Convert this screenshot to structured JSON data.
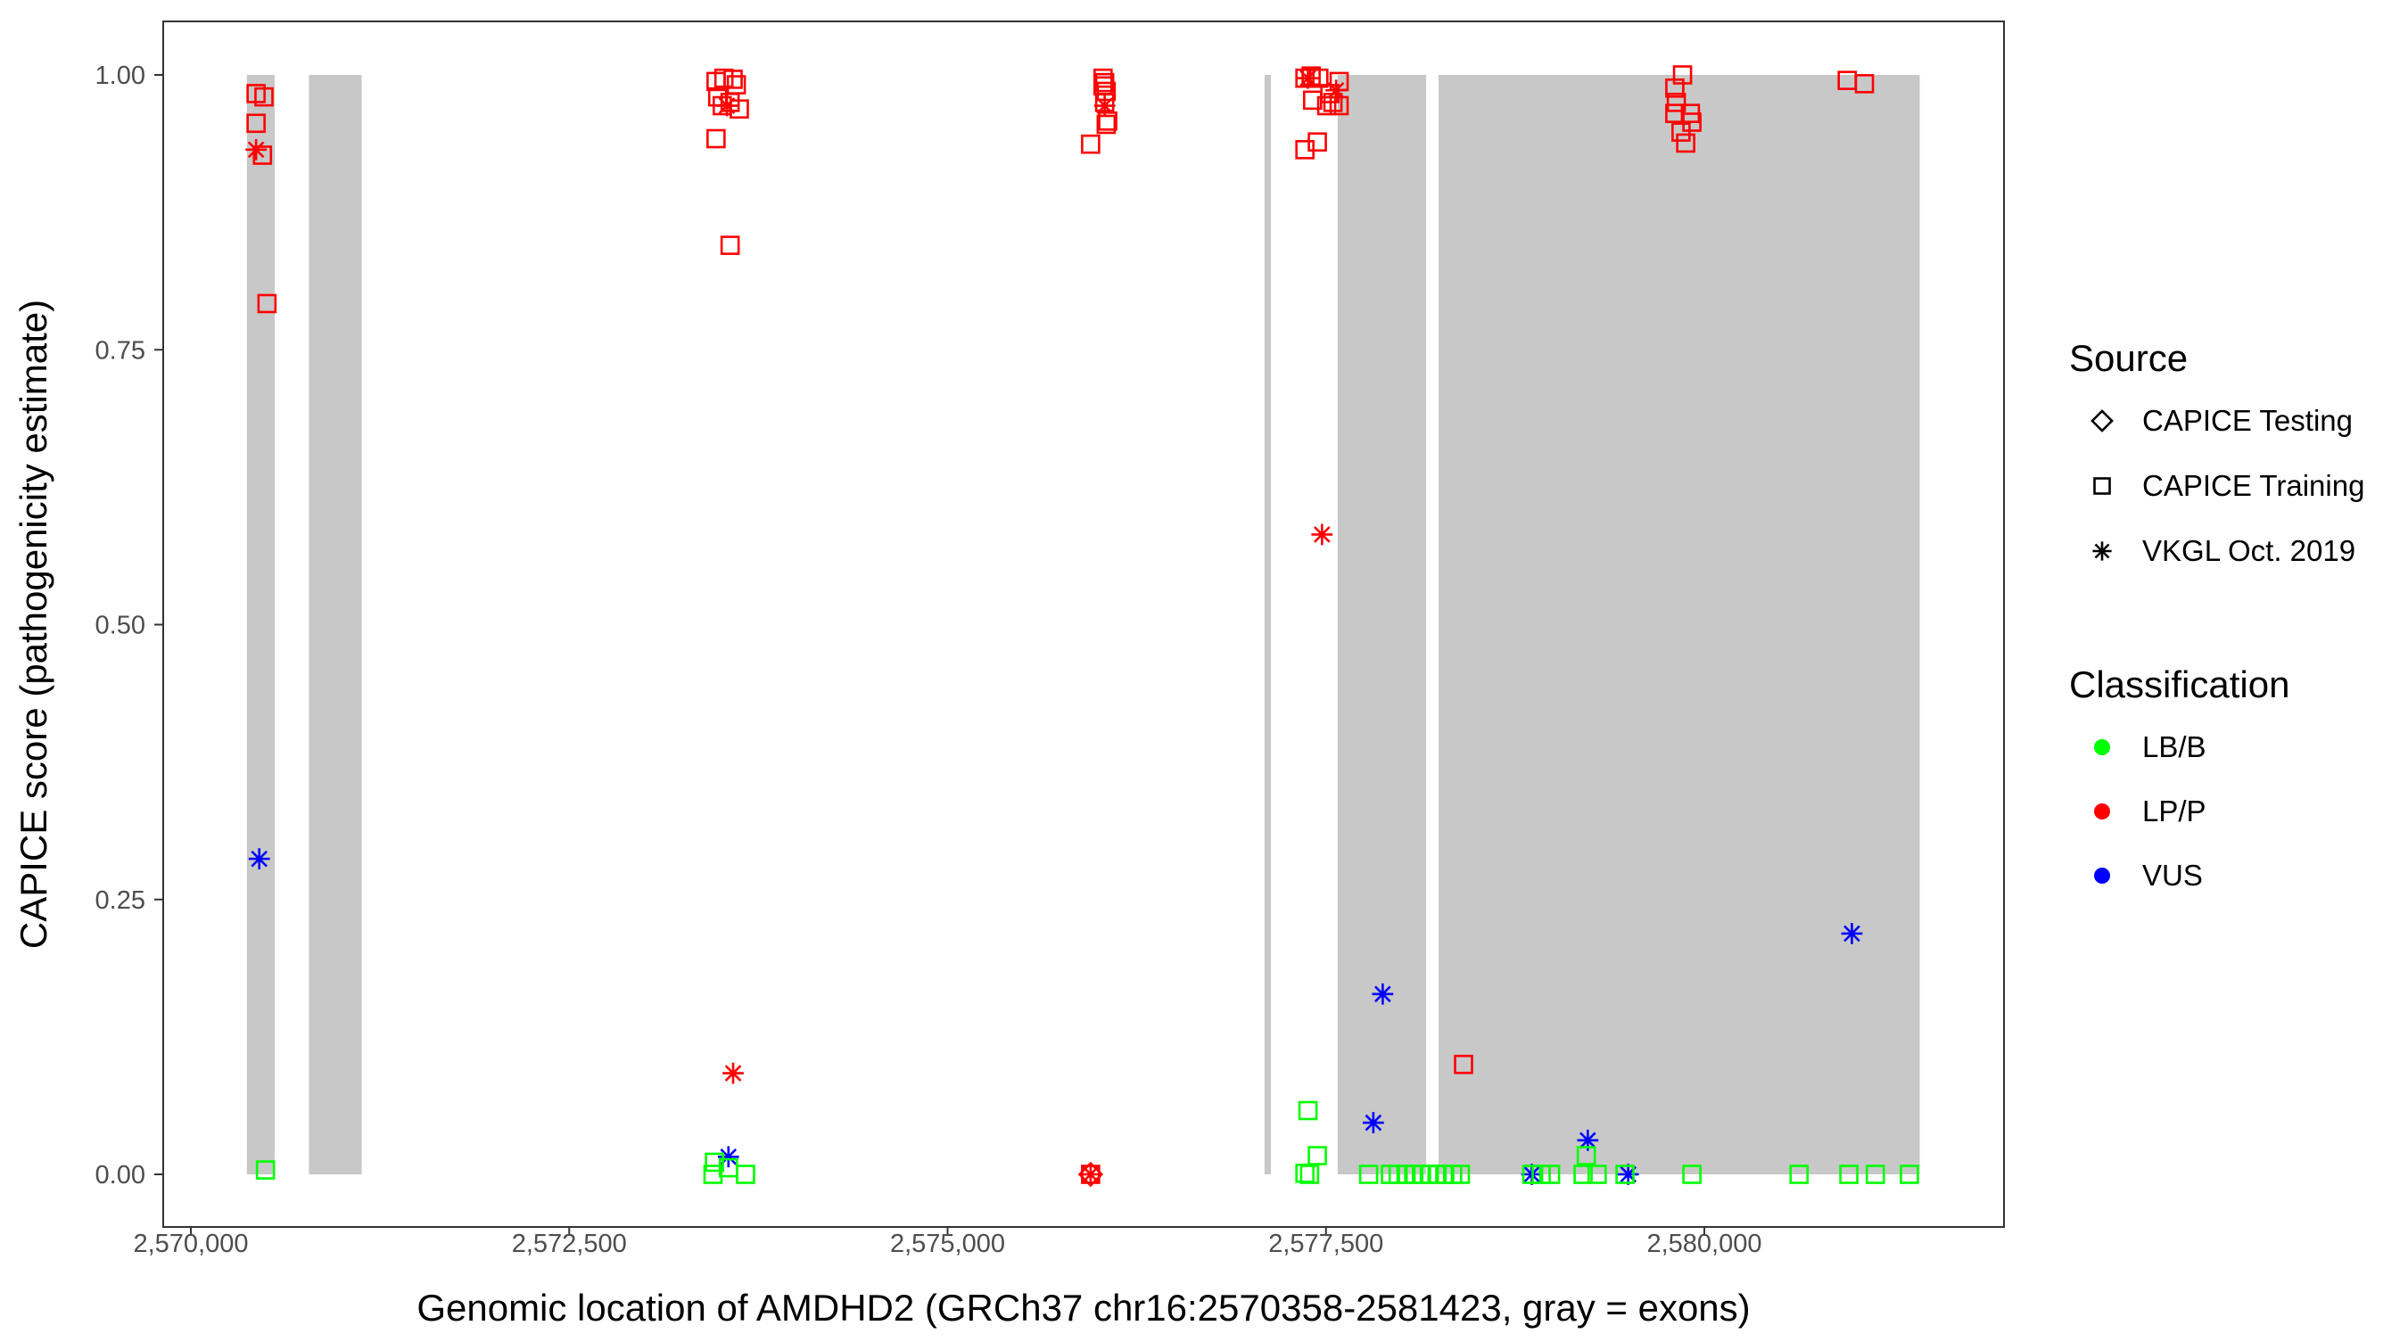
{
  "chart_data": {
    "type": "scatter",
    "title": "",
    "xlabel": "Genomic location of AMDHD2 (GRCh37 chr16:2570358-2581423, gray = exons)",
    "ylabel": "CAPICE score (pathogenicity estimate)",
    "xlim": [
      2569815,
      2581700
    ],
    "ylim": [
      -0.05,
      1.05
    ],
    "x_ticks": [
      2570000,
      2572500,
      2575000,
      2577500,
      2580000
    ],
    "x_tick_labels": [
      "2,570,000",
      "2,572,500",
      "2,575,000",
      "2,577,500",
      "2,580,000"
    ],
    "y_ticks": [
      0,
      0.25,
      0.5,
      0.75,
      1.0
    ],
    "y_tick_labels": [
      "0.00",
      "0.25",
      "0.50",
      "0.75",
      "1.00"
    ],
    "grid": false,
    "exons": [
      [
        2570370,
        2570554
      ],
      [
        2570780,
        2571129
      ],
      [
        2577094,
        2577136
      ],
      [
        2577577,
        2578162
      ],
      [
        2578244,
        2581423
      ]
    ],
    "exon_color": "#c8c8c8",
    "legend": {
      "placement": "right",
      "source_title": "Source",
      "source_items": [
        {
          "label": "CAPICE Testing",
          "shape": "diamond"
        },
        {
          "label": "CAPICE Training",
          "shape": "square"
        },
        {
          "label": "VKGL Oct. 2019",
          "shape": "asterisk"
        }
      ],
      "class_title": "Classification",
      "class_items": [
        {
          "label": "LB/B",
          "color": "#00ff00"
        },
        {
          "label": "LP/P",
          "color": "#ff0000"
        },
        {
          "label": "VUS",
          "color": "#0000ff"
        }
      ]
    },
    "points": [
      [
        2570431,
        0.983,
        "square",
        "LP/P"
      ],
      [
        2570483,
        0.98,
        "square",
        "LP/P"
      ],
      [
        2570431,
        0.956,
        "square",
        "LP/P"
      ],
      [
        2570473,
        0.927,
        "square",
        "LP/P"
      ],
      [
        2570503,
        0.792,
        "square",
        "LP/P"
      ],
      [
        2570493,
        0.004,
        "square",
        "LB/B"
      ],
      [
        2570431,
        0.932,
        "asterisk",
        "LP/P"
      ],
      [
        2570452,
        0.287,
        "asterisk",
        "VUS"
      ],
      [
        2573470,
        0.994,
        "square",
        "LP/P"
      ],
      [
        2573522,
        0.997,
        "square",
        "LP/P"
      ],
      [
        2573583,
        0.996,
        "square",
        "LP/P"
      ],
      [
        2573604,
        0.991,
        "square",
        "LP/P"
      ],
      [
        2573481,
        0.98,
        "square",
        "LP/P"
      ],
      [
        2573511,
        0.972,
        "square",
        "LP/P"
      ],
      [
        2573563,
        0.975,
        "square",
        "LP/P"
      ],
      [
        2573624,
        0.969,
        "square",
        "LP/P"
      ],
      [
        2573470,
        0.942,
        "square",
        "LP/P"
      ],
      [
        2573563,
        0.845,
        "square",
        "LP/P"
      ],
      [
        2573542,
        0.972,
        "asterisk",
        "LP/P"
      ],
      [
        2573583,
        0.092,
        "asterisk",
        "LP/P"
      ],
      [
        2573552,
        0.016,
        "asterisk",
        "VUS"
      ],
      [
        2573450,
        0.0,
        "square",
        "LB/B"
      ],
      [
        2573460,
        0.011,
        "square",
        "LB/B"
      ],
      [
        2573552,
        0.006,
        "square",
        "LB/B"
      ],
      [
        2573665,
        0.0,
        "square",
        "LB/B"
      ],
      [
        2576027,
        0.997,
        "square",
        "LP/P"
      ],
      [
        2576038,
        0.993,
        "square",
        "LP/P"
      ],
      [
        2576027,
        0.99,
        "square",
        "LP/P"
      ],
      [
        2576048,
        0.985,
        "square",
        "LP/P"
      ],
      [
        2576038,
        0.975,
        "square",
        "LP/P"
      ],
      [
        2576058,
        0.958,
        "square",
        "LP/P"
      ],
      [
        2576048,
        0.955,
        "square",
        "LP/P"
      ],
      [
        2575945,
        0.937,
        "square",
        "LP/P"
      ],
      [
        2576038,
        0.972,
        "asterisk",
        "LP/P"
      ],
      [
        2575945,
        0.0,
        "diamond",
        "LP/P"
      ],
      [
        2575945,
        0.0,
        "asterisk",
        "LP/P"
      ],
      [
        2575945,
        0.0,
        "square",
        "LP/P"
      ],
      [
        2577361,
        0.997,
        "square",
        "LP/P"
      ],
      [
        2577402,
        0.999,
        "square",
        "LP/P"
      ],
      [
        2577453,
        0.997,
        "square",
        "LP/P"
      ],
      [
        2577587,
        0.994,
        "square",
        "LP/P"
      ],
      [
        2577526,
        0.983,
        "square",
        "LP/P"
      ],
      [
        2577412,
        0.977,
        "square",
        "LP/P"
      ],
      [
        2577546,
        0.975,
        "square",
        "LP/P"
      ],
      [
        2577505,
        0.972,
        "square",
        "LP/P"
      ],
      [
        2577587,
        0.972,
        "square",
        "LP/P"
      ],
      [
        2577361,
        0.932,
        "square",
        "LP/P"
      ],
      [
        2577443,
        0.939,
        "square",
        "LP/P"
      ],
      [
        2577381,
        0.997,
        "asterisk",
        "LP/P"
      ],
      [
        2577567,
        0.986,
        "asterisk",
        "LP/P"
      ],
      [
        2577474,
        0.582,
        "asterisk",
        "LP/P"
      ],
      [
        2577381,
        0.058,
        "square",
        "LB/B"
      ],
      [
        2577443,
        0.017,
        "square",
        "LB/B"
      ],
      [
        2577361,
        0.001,
        "square",
        "LB/B"
      ],
      [
        2577392,
        0.0,
        "square",
        "LB/B"
      ],
      [
        2577875,
        0.164,
        "asterisk",
        "VUS"
      ],
      [
        2577813,
        0.047,
        "asterisk",
        "VUS"
      ],
      [
        2579856,
        1.0,
        "square",
        "LP/P"
      ],
      [
        2579805,
        0.988,
        "square",
        "LP/P"
      ],
      [
        2579815,
        0.975,
        "square",
        "LP/P"
      ],
      [
        2579805,
        0.965,
        "square",
        "LP/P"
      ],
      [
        2579908,
        0.965,
        "square",
        "LP/P"
      ],
      [
        2579918,
        0.957,
        "square",
        "LP/P"
      ],
      [
        2579846,
        0.948,
        "square",
        "LP/P"
      ],
      [
        2579877,
        0.938,
        "square",
        "LP/P"
      ],
      [
        2580944,
        0.995,
        "square",
        "LP/P"
      ],
      [
        2581058,
        0.992,
        "square",
        "LP/P"
      ],
      [
        2578409,
        0.1,
        "square",
        "LP/P"
      ],
      [
        2578860,
        0.0,
        "asterisk",
        "VUS"
      ],
      [
        2579230,
        0.031,
        "asterisk",
        "VUS"
      ],
      [
        2579497,
        0.0,
        "asterisk",
        "VUS"
      ],
      [
        2580975,
        0.219,
        "asterisk",
        "VUS"
      ],
      [
        2577782,
        0,
        "square",
        "LB/B"
      ],
      [
        2577926,
        0,
        "square",
        "LB/B"
      ],
      [
        2577977,
        0,
        "square",
        "LB/B"
      ],
      [
        2578029,
        0,
        "square",
        "LB/B"
      ],
      [
        2578080,
        0,
        "square",
        "LB/B"
      ],
      [
        2578131,
        0,
        "square",
        "LB/B"
      ],
      [
        2578183,
        0,
        "square",
        "LB/B"
      ],
      [
        2578234,
        0,
        "square",
        "LB/B"
      ],
      [
        2578285,
        0,
        "square",
        "LB/B"
      ],
      [
        2578337,
        0,
        "square",
        "LB/B"
      ],
      [
        2578388,
        0,
        "square",
        "LB/B"
      ],
      [
        2578860,
        0,
        "square",
        "LB/B"
      ],
      [
        2578922,
        0,
        "square",
        "LB/B"
      ],
      [
        2578984,
        0,
        "square",
        "LB/B"
      ],
      [
        2579199,
        0,
        "square",
        "LB/B"
      ],
      [
        2579220,
        0.017,
        "square",
        "LB/B"
      ],
      [
        2579292,
        0,
        "square",
        "LB/B"
      ],
      [
        2579476,
        0,
        "square",
        "LB/B"
      ],
      [
        2579918,
        0,
        "square",
        "LB/B"
      ],
      [
        2580626,
        0,
        "square",
        "LB/B"
      ],
      [
        2580955,
        0,
        "square",
        "LB/B"
      ],
      [
        2581130,
        0,
        "square",
        "LB/B"
      ],
      [
        2581355,
        0,
        "square",
        "LB/B"
      ]
    ]
  }
}
